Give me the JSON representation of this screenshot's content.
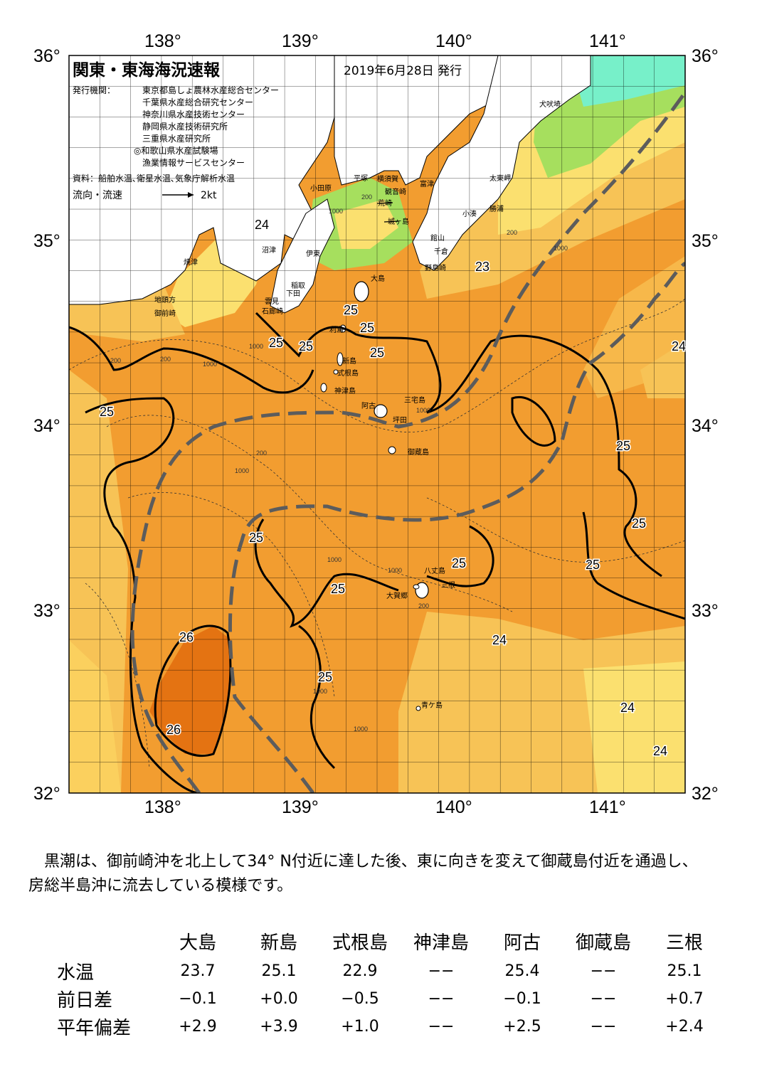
{
  "header": {
    "title": "関東・東海海況速報",
    "date": "2019年6月28日 発行",
    "publisher_label": "発行機関：",
    "publishers": [
      "東京都島しょ農林水産総合センター",
      "千葉県水産総合研究センター",
      "神奈川県水産技術センター",
      "静岡県水産技術研究所",
      "三重県水産研究所",
      "◎和歌山県水産試験場",
      "漁業情報サービスセンター"
    ],
    "source": "資料：船舶水温､衛星水温､気象庁解析水温",
    "legend_label": "流向・流速",
    "legend_scale": "2kt"
  },
  "axes": {
    "lon_top": [
      "138°",
      "139°",
      "140°",
      "141°"
    ],
    "lon_bottom": [
      "138°",
      "139°",
      "140°",
      "141°"
    ],
    "lat_left": [
      "36°",
      "35°",
      "34°",
      "33°",
      "32°"
    ],
    "lat_right": [
      "36°",
      "35°",
      "34°",
      "33°",
      "32°"
    ]
  },
  "places": [
    "犬吠埼",
    "太東岬",
    "勝浦",
    "小湊",
    "富津",
    "館山",
    "千倉",
    "野島崎",
    "横須賀",
    "観音崎",
    "荒崎",
    "平塚",
    "小田原",
    "城ヶ島",
    "沼津",
    "伊東",
    "稲取",
    "下田",
    "雲見",
    "石廊崎",
    "焼津",
    "地頭方",
    "御前崎",
    "大島",
    "利島",
    "新島",
    "式根島",
    "神津島",
    "三宅島",
    "阿古",
    "坪田",
    "御蔵島",
    "八丈島",
    "三根",
    "大賀郷",
    "青ケ島"
  ],
  "isotherms": [
    "24",
    "23",
    "25",
    "25",
    "25",
    "25",
    "25",
    "25",
    "25",
    "25",
    "25",
    "25",
    "25",
    "25",
    "26",
    "26",
    "25",
    "24",
    "24",
    "24",
    "24"
  ],
  "depths": [
    "1000",
    "200",
    "1000",
    "200",
    "1000",
    "200",
    "200",
    "1000",
    "200",
    "1000",
    "1000",
    "1000",
    "1000",
    "200",
    "1000",
    "1000"
  ],
  "colors": {
    "sea_warm": "#f29d30",
    "sea_26": "#e47312",
    "sea_cool": "#f7c356",
    "sea_cooler": "#fbe06f",
    "sea_green": "#a6df5e",
    "sea_teal": "#77f0c9",
    "land": "#ffffff",
    "kuroshio_axis": "#5c5c5c"
  },
  "summary": "黒潮は、御前崎沖を北上して34° N付近に達した後、東に向きを変えて御蔵島付近を通過し、房総半島沖に流去している模様です。",
  "table": {
    "columns": [
      "大島",
      "新島",
      "式根島",
      "神津島",
      "阿古",
      "御蔵島",
      "三根"
    ],
    "rows": [
      {
        "label": "水温",
        "values": [
          "23.7",
          "25.1",
          "22.9",
          "−−",
          "25.4",
          "−−",
          "25.1"
        ]
      },
      {
        "label": "前日差",
        "values": [
          "−0.1",
          "+0.0",
          "−0.5",
          "−−",
          "−0.1",
          "−−",
          "+0.7"
        ]
      },
      {
        "label": "平年偏差",
        "values": [
          "+2.9",
          "+3.9",
          "+1.0",
          "−−",
          "+2.5",
          "−−",
          "+2.4"
        ]
      }
    ]
  }
}
